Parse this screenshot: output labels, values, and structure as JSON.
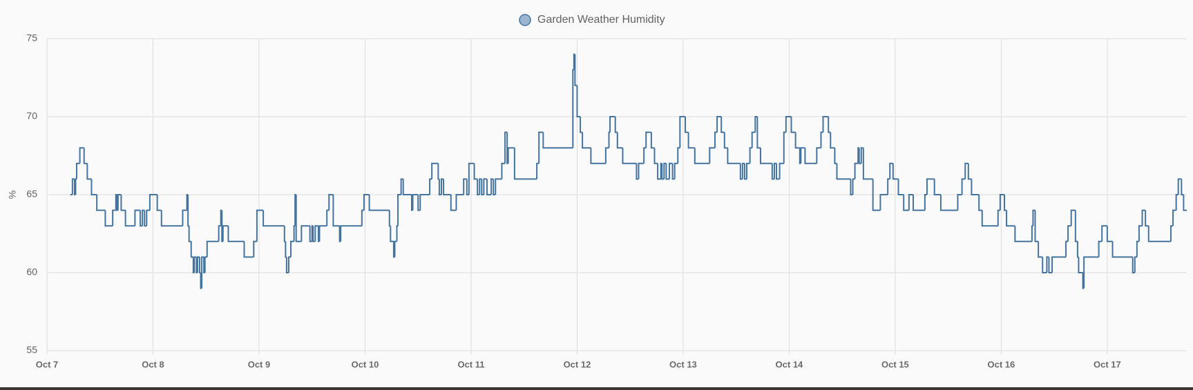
{
  "chart_data": {
    "type": "line",
    "step": true,
    "ylabel": "%",
    "legend": "top",
    "grid": true,
    "xlim": [
      0,
      10.75
    ],
    "xticks": [
      {
        "value": 0,
        "label": "Oct 7"
      },
      {
        "value": 1,
        "label": "Oct 8"
      },
      {
        "value": 2,
        "label": "Oct 9"
      },
      {
        "value": 3,
        "label": "Oct 10"
      },
      {
        "value": 4,
        "label": "Oct 11"
      },
      {
        "value": 5,
        "label": "Oct 12"
      },
      {
        "value": 6,
        "label": "Oct 13"
      },
      {
        "value": 7,
        "label": "Oct 14"
      },
      {
        "value": 8,
        "label": "Oct 15"
      },
      {
        "value": 9,
        "label": "Oct 16"
      },
      {
        "value": 10,
        "label": "Oct 17"
      }
    ],
    "ylim": [
      55,
      75
    ],
    "yticks": [
      55,
      60,
      65,
      70,
      75
    ],
    "x": [
      0.22,
      0.24,
      0.26,
      0.27,
      0.28,
      0.31,
      0.35,
      0.38,
      0.42,
      0.47,
      0.55,
      0.62,
      0.65,
      0.66,
      0.67,
      0.7,
      0.74,
      0.83,
      0.88,
      0.9,
      0.92,
      0.94,
      0.97,
      1.04,
      1.08,
      1.28,
      1.32,
      1.33,
      1.34,
      1.36,
      1.38,
      1.39,
      1.41,
      1.42,
      1.44,
      1.45,
      1.46,
      1.48,
      1.49,
      1.51,
      1.62,
      1.64,
      1.65,
      1.66,
      1.71,
      1.86,
      1.95,
      1.98,
      2.04,
      2.24,
      2.25,
      2.26,
      2.28,
      2.3,
      2.33,
      2.34,
      2.35,
      2.4,
      2.48,
      2.5,
      2.51,
      2.53,
      2.56,
      2.57,
      2.64,
      2.66,
      2.7,
      2.76,
      2.77,
      2.97,
      2.99,
      3.04,
      3.23,
      3.24,
      3.27,
      3.28,
      3.3,
      3.31,
      3.34,
      3.36,
      3.44,
      3.45,
      3.5,
      3.52,
      3.61,
      3.63,
      3.69,
      3.7,
      3.72,
      3.74,
      3.81,
      3.86,
      3.93,
      3.96,
      3.98,
      4.03,
      4.06,
      4.08,
      4.1,
      4.12,
      4.15,
      4.19,
      4.21,
      4.23,
      4.29,
      4.32,
      4.34,
      4.35,
      4.41,
      4.62,
      4.64,
      4.68,
      4.96,
      4.97,
      4.98,
      5.0,
      5.03,
      5.05,
      5.13,
      5.27,
      5.3,
      5.31,
      5.36,
      5.38,
      5.43,
      5.56,
      5.58,
      5.63,
      5.65,
      5.7,
      5.73,
      5.76,
      5.79,
      5.8,
      5.82,
      5.84,
      5.87,
      5.9,
      5.92,
      5.95,
      5.97,
      6.02,
      6.05,
      6.11,
      6.25,
      6.3,
      6.32,
      6.36,
      6.39,
      6.42,
      6.54,
      6.56,
      6.58,
      6.6,
      6.63,
      6.65,
      6.68,
      6.7,
      6.73,
      6.84,
      6.86,
      6.88,
      6.91,
      6.95,
      6.97,
      7.02,
      7.06,
      7.1,
      7.11,
      7.15,
      7.26,
      7.3,
      7.32,
      7.37,
      7.39,
      7.43,
      7.45,
      7.58,
      7.6,
      7.62,
      7.65,
      7.66,
      7.68,
      7.7,
      7.79,
      7.86,
      7.93,
      7.95,
      7.98,
      8.03,
      8.08,
      8.13,
      8.17,
      8.28,
      8.3,
      8.37,
      8.43,
      8.59,
      8.63,
      8.66,
      8.69,
      8.72,
      8.79,
      8.82,
      8.97,
      8.99,
      9.03,
      9.05,
      9.13,
      9.29,
      9.3,
      9.32,
      9.35,
      9.39,
      9.43,
      9.45,
      9.48,
      9.61,
      9.63,
      9.66,
      9.7,
      9.72,
      9.73,
      9.77,
      9.78,
      9.92,
      9.95,
      10.0,
      10.05,
      10.24,
      10.26,
      10.28,
      10.3,
      10.33,
      10.36,
      10.39,
      10.6,
      10.62,
      10.65,
      10.67,
      10.7,
      10.72
    ],
    "series": [
      {
        "name": "Garden Weather Humidity",
        "color": "#44739e",
        "fill": "#9bb4cf",
        "values": [
          65,
          66,
          65,
          66,
          67,
          68,
          67,
          66,
          65,
          64,
          63,
          64,
          65,
          64,
          65,
          64,
          63,
          64,
          63,
          64,
          63,
          64,
          65,
          64,
          63,
          64,
          65,
          63,
          62,
          61,
          60,
          61,
          60,
          61,
          60,
          59,
          61,
          60,
          61,
          62,
          63,
          64,
          62,
          63,
          62,
          61,
          62,
          64,
          63,
          62,
          61,
          60,
          61,
          62,
          63,
          65,
          62,
          63,
          62,
          63,
          62,
          63,
          62,
          63,
          64,
          65,
          63,
          62,
          63,
          64,
          65,
          64,
          63,
          62,
          61,
          62,
          63,
          65,
          66,
          65,
          64,
          65,
          64,
          65,
          66,
          67,
          66,
          65,
          66,
          65,
          64,
          65,
          66,
          65,
          67,
          66,
          65,
          66,
          65,
          66,
          65,
          66,
          65,
          66,
          67,
          69,
          67,
          68,
          66,
          67,
          69,
          68,
          73,
          74,
          72,
          70,
          69,
          68,
          67,
          68,
          69,
          70,
          69,
          68,
          67,
          66,
          67,
          68,
          69,
          68,
          67,
          66,
          67,
          66,
          67,
          66,
          67,
          66,
          67,
          68,
          70,
          69,
          68,
          67,
          68,
          69,
          70,
          69,
          68,
          67,
          66,
          67,
          66,
          67,
          68,
          69,
          70,
          68,
          67,
          66,
          67,
          66,
          67,
          69,
          70,
          69,
          68,
          67,
          68,
          67,
          68,
          69,
          70,
          69,
          68,
          67,
          66,
          65,
          66,
          67,
          68,
          67,
          68,
          66,
          64,
          65,
          66,
          67,
          66,
          65,
          64,
          65,
          64,
          65,
          66,
          65,
          64,
          65,
          66,
          67,
          66,
          65,
          64,
          63,
          64,
          65,
          64,
          63,
          62,
          63,
          64,
          62,
          61,
          60,
          61,
          60,
          61,
          62,
          63,
          64,
          62,
          61,
          60,
          59,
          61,
          62,
          63,
          62,
          61,
          60,
          61,
          62,
          63,
          64,
          63,
          62,
          63,
          64,
          65,
          66,
          65,
          64
        ]
      }
    ]
  }
}
